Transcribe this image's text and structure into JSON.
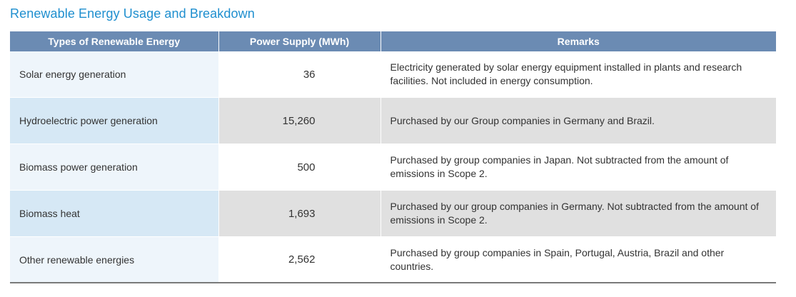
{
  "title": "Renewable Energy Usage and Breakdown",
  "table": {
    "headers": [
      "Types of Renewable Energy",
      "Power Supply (MWh)",
      "Remarks"
    ],
    "rows": [
      {
        "type": "Solar energy generation",
        "supply": "36",
        "remarks": "Electricity generated by solar energy equipment installed in plants and research facilities. Not included in energy consumption."
      },
      {
        "type": "Hydroelectric power generation",
        "supply": "15,260",
        "remarks": "Purchased by our Group companies in Germany and Brazil."
      },
      {
        "type": "Biomass power generation",
        "supply": "500",
        "remarks": "Purchased by group companies in Japan. Not subtracted from the amount of emissions in Scope 2."
      },
      {
        "type": "Biomass heat",
        "supply": "1,693",
        "remarks": "Purchased by our group companies in Germany. Not subtracted from the amount of emissions in Scope 2."
      },
      {
        "type": "Other renewable energies",
        "supply": "2,562",
        "remarks": "Purchased by group companies in Spain, Portugal, Austria, Brazil and other countries."
      }
    ]
  }
}
